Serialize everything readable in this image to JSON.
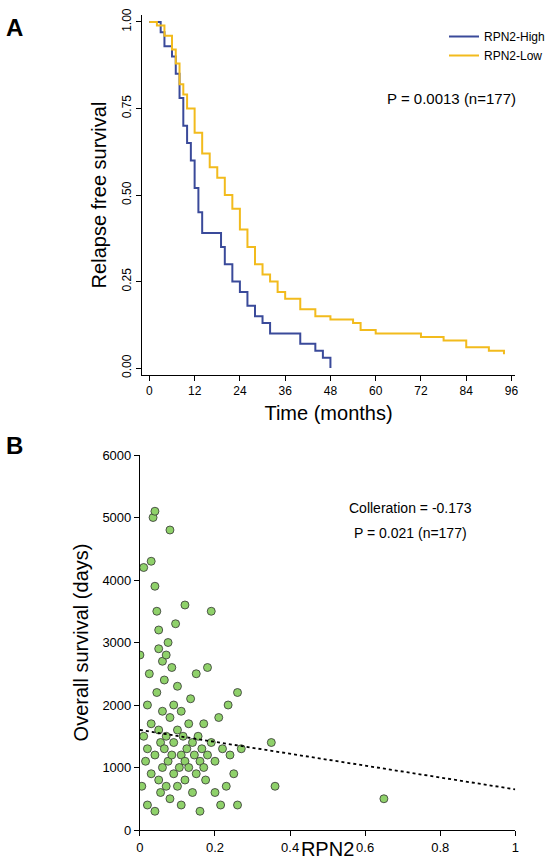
{
  "chart_data": [
    {
      "panel": "A",
      "type": "line",
      "xlabel": "Time (months)",
      "ylabel": "Relapse free survival",
      "xlim": [
        -2,
        97
      ],
      "xticks": [
        0,
        12,
        24,
        36,
        48,
        60,
        72,
        84,
        96
      ],
      "ylim": [
        -0.02,
        1.02
      ],
      "yticks": [
        {
          "value": 0,
          "label": "0.00"
        },
        {
          "value": 0.25,
          "label": "0.25"
        },
        {
          "value": 0.5,
          "label": "0.50"
        },
        {
          "value": 0.75,
          "label": "0.75"
        },
        {
          "value": 1,
          "label": "1.00"
        }
      ],
      "grid": false,
      "legend": "top right",
      "annotations": [
        {
          "text": "P = 0.0013 (n=177)",
          "x": 80,
          "y": 0.78
        }
      ],
      "series": [
        {
          "name": "RPN2-High",
          "color": "#3a4a9a",
          "line_style": "step",
          "x": [
            0,
            3,
            4,
            6,
            7,
            8,
            9,
            10,
            11,
            12,
            13,
            14,
            18,
            19,
            20,
            22,
            24,
            26,
            28,
            30,
            32,
            36,
            40,
            44,
            46,
            48
          ],
          "values": [
            1,
            0.97,
            0.93,
            0.9,
            0.85,
            0.78,
            0.7,
            0.65,
            0.6,
            0.52,
            0.45,
            0.39,
            0.39,
            0.35,
            0.3,
            0.25,
            0.22,
            0.18,
            0.15,
            0.13,
            0.1,
            0.1,
            0.07,
            0.05,
            0.03,
            0
          ]
        },
        {
          "name": "RPN2-Low",
          "color": "#f2bb1d",
          "line_style": "step",
          "x": [
            0,
            2,
            4,
            6,
            7,
            8,
            9,
            10,
            12,
            14,
            16,
            18,
            20,
            22,
            24,
            26,
            28,
            30,
            32,
            34,
            36,
            40,
            44,
            48,
            54,
            56,
            60,
            72,
            78,
            84,
            90,
            94
          ],
          "values": [
            1,
            0.99,
            0.96,
            0.92,
            0.88,
            0.82,
            0.79,
            0.75,
            0.68,
            0.62,
            0.58,
            0.55,
            0.5,
            0.46,
            0.4,
            0.35,
            0.3,
            0.27,
            0.25,
            0.22,
            0.2,
            0.17,
            0.15,
            0.14,
            0.13,
            0.11,
            0.1,
            0.09,
            0.08,
            0.06,
            0.05,
            0.04
          ]
        }
      ]
    },
    {
      "panel": "B",
      "type": "scatter",
      "xlabel": "RPN2",
      "ylabel": "Overall survival (days)",
      "xlim": [
        0,
        1
      ],
      "xticks": [
        0,
        0.2,
        0.4,
        0.6,
        0.8,
        1
      ],
      "ylim": [
        0,
        6000
      ],
      "yticks": [
        0,
        1000,
        2000,
        3000,
        4000,
        5000,
        6000
      ],
      "grid": false,
      "annotations": [
        {
          "text": "Colleration = -0.173",
          "x": 0.72,
          "y": 5150
        },
        {
          "text": "P = 0.021 (n=177)",
          "x": 0.72,
          "y": 4750
        }
      ],
      "series": [
        {
          "type": "scatter",
          "color": "#8fd16a",
          "marker": "circle",
          "x": [
            0.0,
            0.005,
            0.01,
            0.01,
            0.015,
            0.02,
            0.02,
            0.02,
            0.025,
            0.03,
            0.03,
            0.03,
            0.035,
            0.04,
            0.04,
            0.04,
            0.04,
            0.045,
            0.045,
            0.05,
            0.05,
            0.05,
            0.05,
            0.055,
            0.055,
            0.06,
            0.06,
            0.06,
            0.065,
            0.065,
            0.07,
            0.07,
            0.07,
            0.075,
            0.075,
            0.08,
            0.08,
            0.08,
            0.085,
            0.085,
            0.09,
            0.09,
            0.09,
            0.095,
            0.1,
            0.1,
            0.1,
            0.105,
            0.11,
            0.11,
            0.11,
            0.115,
            0.12,
            0.12,
            0.12,
            0.125,
            0.13,
            0.13,
            0.135,
            0.14,
            0.14,
            0.145,
            0.15,
            0.15,
            0.155,
            0.16,
            0.16,
            0.165,
            0.17,
            0.17,
            0.175,
            0.18,
            0.18,
            0.19,
            0.19,
            0.2,
            0.2,
            0.21,
            0.215,
            0.22,
            0.23,
            0.235,
            0.24,
            0.25,
            0.26,
            0.26,
            0.27,
            0.35,
            0.36,
            0.65
          ],
          "values": [
            2800,
            700,
            4200,
            1500,
            1100,
            2000,
            400,
            1300,
            2500,
            900,
            1700,
            4300,
            5000,
            5100,
            3900,
            1200,
            300,
            3500,
            2200,
            1600,
            800,
            2900,
            3200,
            1400,
            600,
            2700,
            1000,
            1900,
            2400,
            1300,
            2800,
            700,
            1500,
            3000,
            1100,
            4800,
            1800,
            500,
            2600,
            1200,
            2000,
            900,
            1400,
            3300,
            1600,
            700,
            2300,
            1000,
            1200,
            1900,
            400,
            1500,
            3600,
            1100,
            800,
            1300,
            1700,
            1000,
            2100,
            1400,
            600,
            1200,
            2500,
            900,
            1500,
            1100,
            300,
            1300,
            1700,
            1000,
            800,
            2600,
            1200,
            3500,
            1400,
            1100,
            600,
            1800,
            400,
            1300,
            700,
            2000,
            1200,
            900,
            2200,
            400,
            1300,
            1400,
            700,
            500
          ]
        },
        {
          "type": "line",
          "color": "#000000",
          "line_style": "dotted",
          "x": [
            0,
            1
          ],
          "values": [
            1600,
            650
          ]
        }
      ]
    }
  ]
}
